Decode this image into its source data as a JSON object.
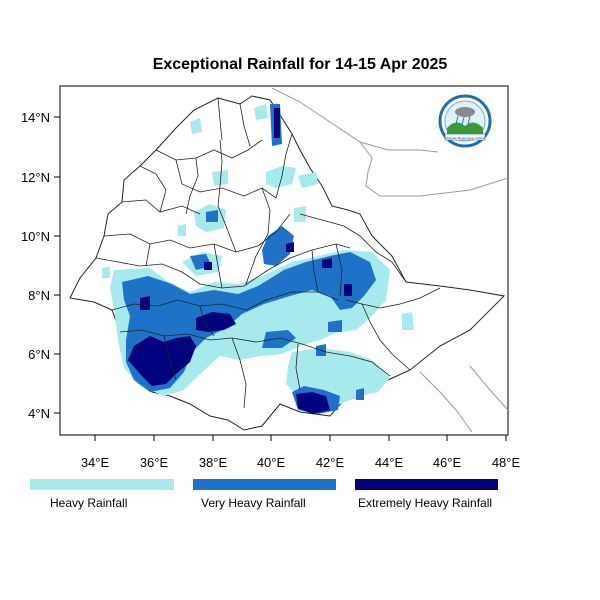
{
  "title": "Exceptional Rainfall for 14-15 Apr 2025",
  "x_axis": {
    "ticks": [
      "34°E",
      "36°E",
      "38°E",
      "40°E",
      "42°E",
      "44°E",
      "46°E",
      "48°E"
    ]
  },
  "y_axis": {
    "ticks": [
      "14°N",
      "12°N",
      "10°N",
      "8°N",
      "6°N",
      "4°N"
    ]
  },
  "legend": {
    "items": [
      {
        "label": "Heavy Rainfall",
        "color": "#a6eaee"
      },
      {
        "label": "Very Heavy Rainfall",
        "color": "#1e73c8"
      },
      {
        "label": "Extremely Heavy Rainfall",
        "color": "#02027f"
      }
    ]
  },
  "logo": {
    "name": "meteorology-institute-logo",
    "text": "Ethiopian Meteorology Institute"
  }
}
